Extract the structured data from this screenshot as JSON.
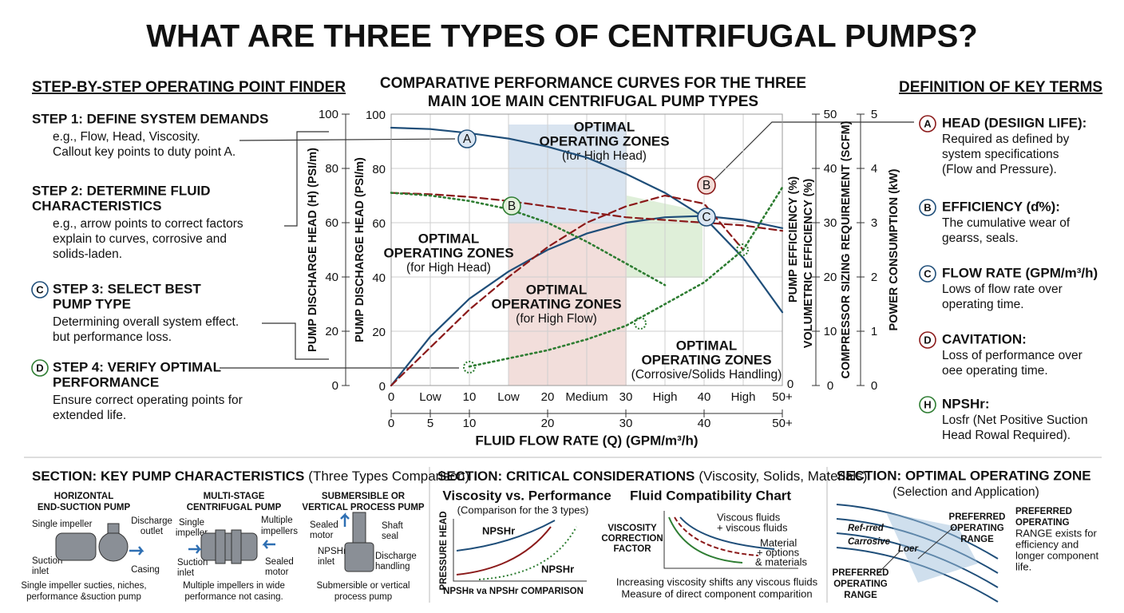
{
  "title": "WHAT ARE THREE TYPES OF CENTRIFUGAL PUMPS?",
  "steps": {
    "heading": "STEP-BY-STEP OPERATING POINT FINDER",
    "items": [
      {
        "title": [
          "STEP 1: DEFINE SYSTEM DEMANDS"
        ],
        "text": [
          "e.g., Flow, Head, Viscosity.",
          "Callout key points to duty point A."
        ]
      },
      {
        "title": [
          "STEP 2: DETERMINE FLUID",
          "CHARACTERISTICS"
        ],
        "text": [
          "e.g., arrow points to correct factors",
          "explain to curves, corrosive and",
          "solids-laden."
        ]
      },
      {
        "badge": "C",
        "title": [
          "STEP 3: SELECT BEST",
          "PUMP TYPE"
        ],
        "text": [
          "Determining overall system effect.",
          "but performance loss."
        ]
      },
      {
        "badge": "D",
        "title": [
          "STEP 4: VERIFY OPTIMAL",
          "PERFORMANCE"
        ],
        "text": [
          "Ensure correct operating points for",
          "extended life."
        ]
      }
    ]
  },
  "definitions": {
    "heading": "DEFINITION OF KEY TERMS",
    "items": [
      {
        "badge": "A",
        "term": "HEAD (DESIIGN LIFE):",
        "text": [
          "Required as defined by",
          "system specifications",
          "(Flow and Pressure)."
        ]
      },
      {
        "badge": "B",
        "term": "EFFICIENCY (ɗ%):",
        "text": [
          "The cumulative wear of",
          "gearss, seals."
        ]
      },
      {
        "badge": "C",
        "term": "FLOW RATE (GPM/m³/h)",
        "text": [
          "Lows of flow rate over",
          "operating time."
        ]
      },
      {
        "badge": "D",
        "term": "CAVITATION:",
        "text": [
          "Loss of performance over",
          "oee operating time."
        ]
      },
      {
        "badge": "H",
        "term": "NPSHr:",
        "text": [
          "Losfr (Net Positive Suction",
          "Head Rowal Required)."
        ]
      }
    ]
  },
  "chart_data": {
    "type": "line",
    "title": [
      "COMPARATIVE PERFORMANCE CURVES FOR THE THREE",
      "MAIN 1OE MAIN CENTRIFUGAL PUMP TYPES"
    ],
    "x": [
      0,
      5,
      10,
      15,
      20,
      25,
      30,
      35,
      40,
      45,
      50
    ],
    "xlim": [
      0,
      50
    ],
    "xticks": [
      0,
      {
        "value": 5,
        "label": "Low"
      },
      10,
      {
        "value": 15,
        "label": "Low"
      },
      20,
      {
        "value": 25,
        "label": "Medium"
      },
      30,
      {
        "value": 35,
        "label": "High"
      },
      40,
      {
        "value": 45,
        "label": "High"
      },
      {
        "value": 50,
        "label": "50+"
      }
    ],
    "x2ticks": [
      0,
      5,
      10,
      20,
      30,
      40,
      {
        "value": 50,
        "label": "50+"
      }
    ],
    "xlabel": "FLUID FLOW RATE (Q) (GPM/m³/h)",
    "ylim": [
      0,
      100
    ],
    "yticks": [
      0,
      20,
      40,
      60,
      80,
      100
    ],
    "ylabel": "PUMP DISCHARGE HEAD (PSI/m)",
    "yticks_outer": [
      0,
      20,
      40,
      60,
      80,
      100
    ],
    "ylabel_outer": "PUMP DISCHARGE HEAD (H) (PSI/m)",
    "y2lim": [
      0,
      50
    ],
    "y2ticks": [
      0,
      10,
      20,
      30,
      40,
      50
    ],
    "y2label": [
      "PUMP EFFICIENCY (%)",
      "VOLUMETRIC EFFICIENCY (%)"
    ],
    "y3lim": [
      0,
      5
    ],
    "y3ticks": [
      0,
      1,
      2,
      3,
      4,
      5
    ],
    "y3label": [
      "COMPRESSOR SIZING REQUIREMENT (SCFM)",
      "POWER CONSUMPTION (kW)"
    ],
    "grid": true,
    "series": [
      {
        "color": "#1f4e79",
        "style": "solid",
        "values": [
          95,
          94.5,
          93,
          91,
          88,
          84,
          78,
          71,
          62,
          47,
          27
        ]
      },
      {
        "color": "#1f4e79",
        "style": "solid",
        "values": [
          0,
          18,
          32,
          42,
          50,
          56,
          60,
          62,
          62.5,
          61,
          58
        ]
      },
      {
        "color": "#8b1a1a",
        "style": "dashed",
        "values": [
          71,
          70.5,
          69.5,
          68,
          66,
          64,
          62,
          61,
          60,
          59,
          57
        ]
      },
      {
        "color": "#8b1a1a",
        "style": "dashed",
        "values": [
          0,
          14,
          28,
          40,
          51,
          60,
          66,
          70,
          67,
          50,
          null
        ]
      },
      {
        "color": "#2e7d32",
        "style": "dotted",
        "values": [
          71,
          70,
          68,
          65,
          60,
          53,
          45,
          37,
          null,
          null,
          null
        ]
      },
      {
        "color": "#2e7d32",
        "style": "dotted",
        "values": [
          null,
          null,
          7,
          10,
          13,
          17,
          22,
          30,
          38,
          50,
          73
        ]
      }
    ],
    "markers": [
      "A",
      "B",
      "C",
      "B"
    ],
    "zones": [
      {
        "text": [
          "OPTIMAL",
          "OPERATING ZONES",
          "(for High Head)"
        ],
        "color": "#1f4e79"
      },
      {
        "text": [
          "OPTIMAL",
          "OPERATING ZONES",
          "(for High Head)"
        ],
        "color": "#2e7d32"
      },
      {
        "text": [
          "OPTIMAL",
          "OPERATING ZONES",
          "(for High Flow)"
        ],
        "color": "#8b1a1a"
      },
      {
        "text": [
          "OPTIMAL",
          "OPERATING ZONES",
          "(Corrosive/Solids Handling)"
        ],
        "color": "#2e7d32"
      }
    ],
    "end_label": "0"
  },
  "sections": [
    {
      "heading": "SECTION: KEY PUMP CHARACTERISTICS",
      "sub": "(Three Types Comparison)",
      "pumps": [
        {
          "title": [
            "HORIZONTAL",
            "END-SUCTION PUMP"
          ],
          "callouts": [
            "Single impeller",
            "Discharge",
            "outlet",
            "Suction",
            "inlet",
            "Casing"
          ],
          "caption": [
            "Single impeller sucties, niches,",
            "performance &suction pump"
          ]
        },
        {
          "title": [
            "MULTI-STAGE",
            "CENTRIFUGAL PUMP"
          ],
          "callouts": [
            "Single",
            "impeller",
            "Multiple",
            "impellers",
            "Suction",
            "inlet",
            "Sealed",
            "motor"
          ],
          "caption": [
            "Multiple impellers in wide",
            "performance not casing."
          ]
        },
        {
          "title": [
            "SUBMERSIBLE OR",
            "VERTICAL PROCESS PUMP"
          ],
          "callouts": [
            "Sealed",
            "motor",
            "Shaft",
            "seal",
            "NPSHr",
            "inlet",
            "Discharge",
            "handling"
          ],
          "caption": [
            "Submersible or vertical",
            "process pump"
          ]
        }
      ]
    },
    {
      "heading": "SECTION: CRITICAL CONSIDERATIONS",
      "sub": "(Viscosity, Solids, Materials)",
      "left": {
        "title": "Viscosity vs. Performance",
        "sub": "(Comparison for the 3 types)",
        "ylabel": "PRESSURE HEAD",
        "labels": [
          "NPSHr",
          "NPSHr"
        ],
        "footer": "NPSHʀ va NPSHr COMPARISON"
      },
      "right": {
        "title": "Fluid Compatibility Chart",
        "ylabel": [
          "VISCOSITY",
          "CORRECTION",
          "FACTOR"
        ],
        "labels": [
          "Viscous fluids",
          "+ viscous fluids",
          "Material",
          "+ options",
          "& materials"
        ],
        "footer": [
          "Increasing viscosity shifts any viscous fluids",
          "Measure of direct component comparition"
        ]
      }
    },
    {
      "heading": "SECTION: OPTIMAL OPERATING ZONE",
      "sub": "(Selection and Application)",
      "labels": [
        "Ref-rred",
        "Carrosive",
        "Loer"
      ],
      "callout1": [
        "PREFERRED",
        "OPERATING",
        "RANGE"
      ],
      "callout2": [
        "PREFERRED",
        "OPERATING",
        "RANGE"
      ],
      "note": [
        "PREFERRED",
        "OPERATING",
        "RANGE exists for",
        "efficiency and",
        "longer component",
        "life."
      ]
    }
  ]
}
